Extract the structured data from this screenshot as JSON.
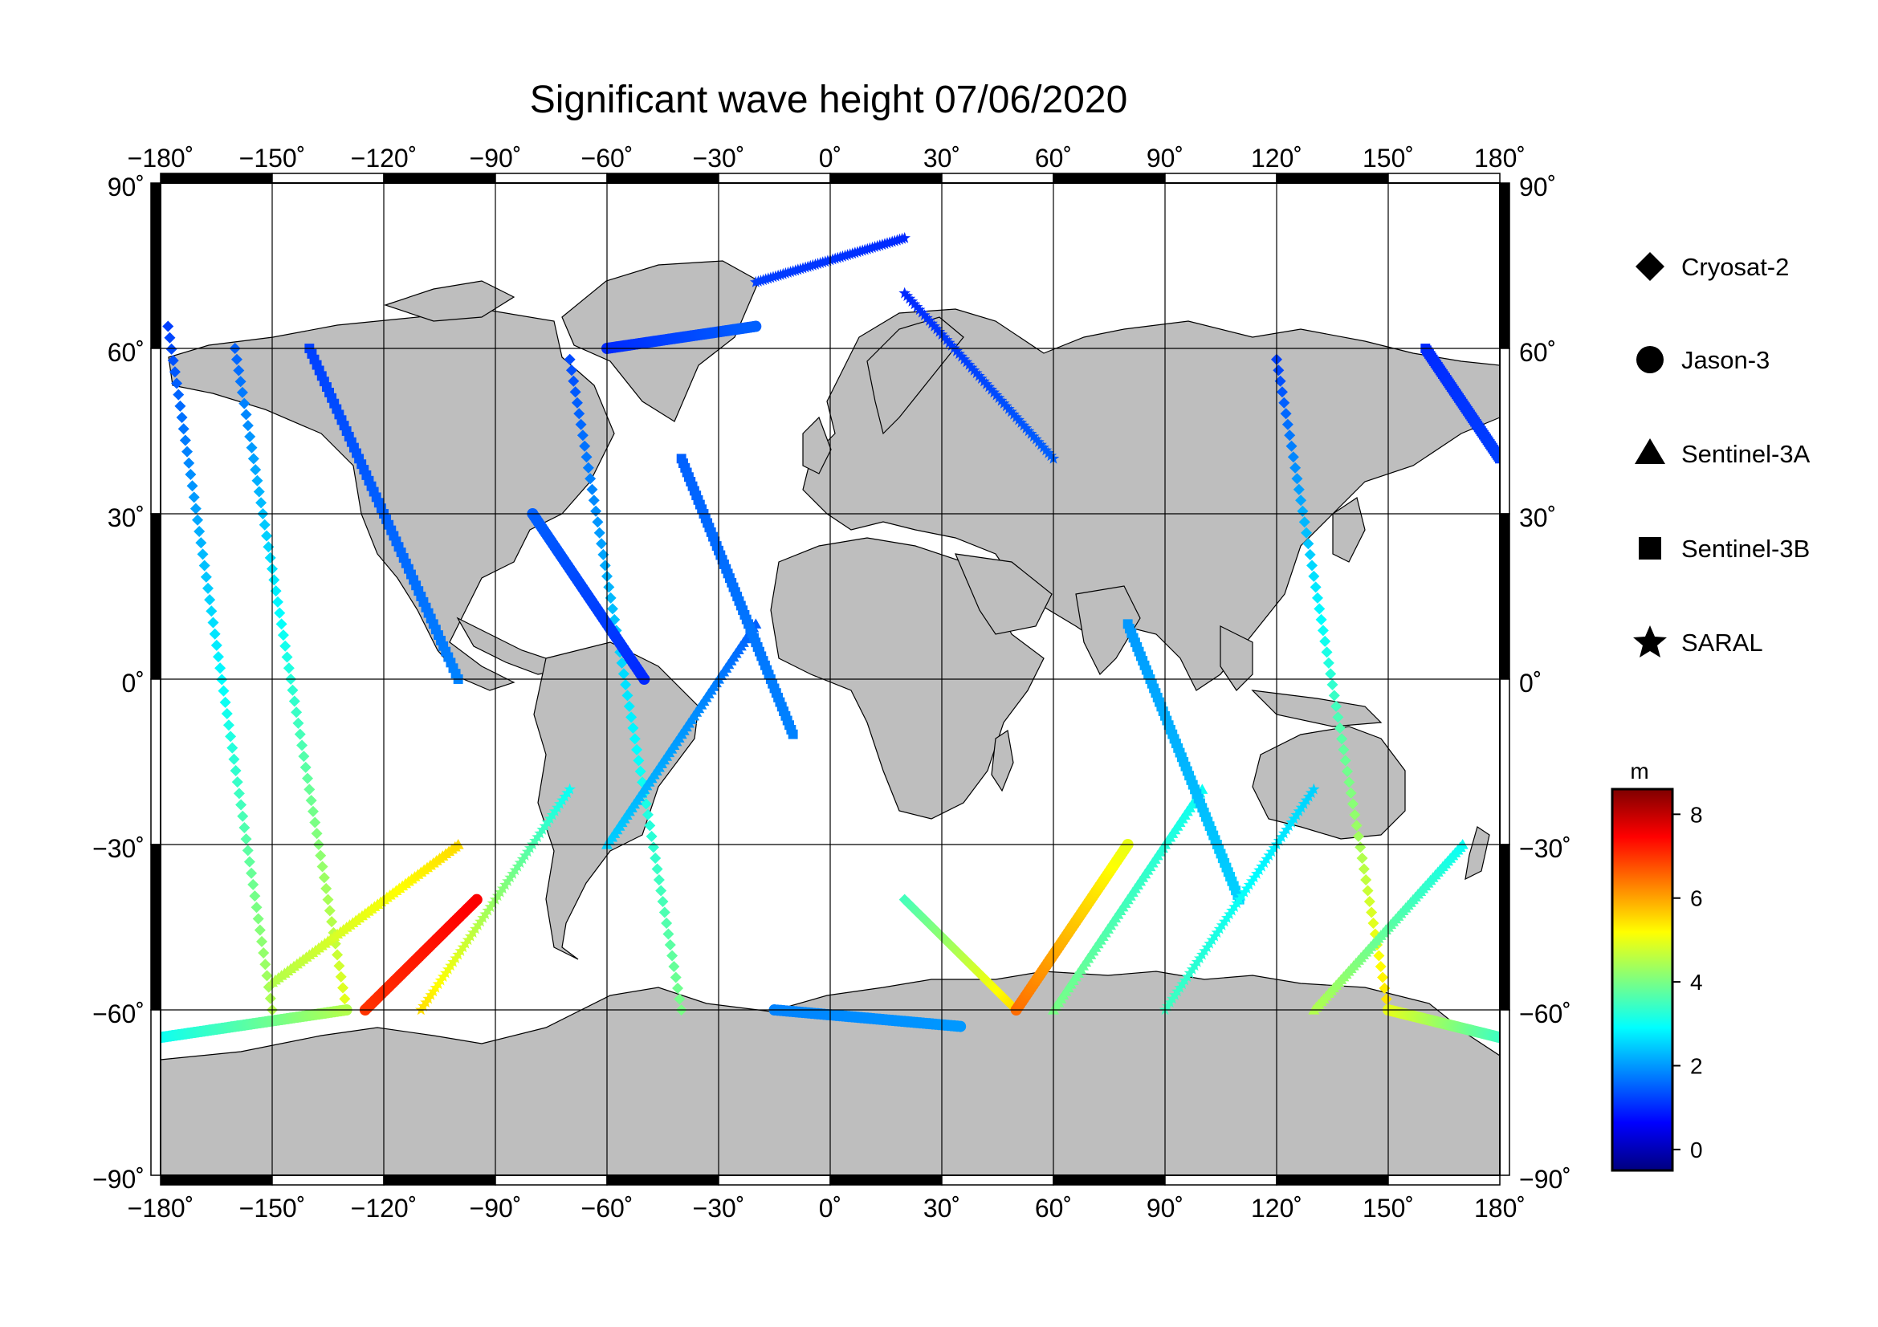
{
  "title": "Significant wave height 07/06/2020",
  "axes": {
    "lon_ticks": [
      "−180˚",
      "−150˚",
      "−120˚",
      "−90˚",
      "−60˚",
      "−30˚",
      "0˚",
      "30˚",
      "60˚",
      "90˚",
      "120˚",
      "150˚",
      "180˚"
    ],
    "lat_ticks": [
      "90˚",
      "60˚",
      "30˚",
      "0˚",
      "−30˚",
      "−60˚",
      "−90˚"
    ],
    "lon_range": [
      -180,
      180
    ],
    "lat_range": [
      -90,
      90
    ],
    "grid": true
  },
  "legend": {
    "position": "right",
    "items": [
      {
        "name": "Cryosat-2",
        "symbol": "diamond-icon"
      },
      {
        "name": "Jason-3",
        "symbol": "circle-icon"
      },
      {
        "name": "Sentinel-3A",
        "symbol": "triangle-icon"
      },
      {
        "name": "Sentinel-3B",
        "symbol": "square-icon"
      },
      {
        "name": "SARAL",
        "symbol": "star-icon"
      }
    ]
  },
  "colorbar": {
    "unit": "m",
    "ticks": [
      "8",
      "6",
      "4",
      "2",
      "0"
    ],
    "range": [
      -0.5,
      8.6
    ],
    "colors": [
      "#00007f",
      "#0000ff",
      "#007fff",
      "#00ffff",
      "#7fff7f",
      "#ffff00",
      "#ff7f00",
      "#ff0000",
      "#7f0000"
    ]
  },
  "colors": {
    "land": "#bebebe",
    "ocean": "#ffffff",
    "frame": "#000000"
  },
  "chart_data": {
    "type": "scatter",
    "xlabel": "",
    "ylabel": "",
    "xlim": [
      -180,
      180
    ],
    "ylim": [
      -90,
      90
    ],
    "value_unit": "m",
    "series": [
      {
        "name": "Cryosat-2",
        "marker": "diamond",
        "tracks": [
          {
            "lon": [
              -178,
              -150
            ],
            "lat": [
              64,
              -60
            ],
            "val": [
              1.2,
              4.5
            ]
          },
          {
            "lon": [
              -160,
              -130
            ],
            "lat": [
              60,
              -60
            ],
            "val": [
              1.5,
              5.0
            ]
          },
          {
            "lon": [
              -70,
              -40
            ],
            "lat": [
              58,
              -60
            ],
            "val": [
              1.3,
              4.0
            ]
          },
          {
            "lon": [
              20,
              50
            ],
            "lat": [
              -40,
              -60
            ],
            "val": [
              3.5,
              5.5
            ]
          },
          {
            "lon": [
              120,
              150
            ],
            "lat": [
              58,
              -60
            ],
            "val": [
              1.2,
              5.5
            ]
          }
        ]
      },
      {
        "name": "Jason-3",
        "marker": "circle",
        "tracks": [
          {
            "lon": [
              -180,
              -130
            ],
            "lat": [
              -65,
              -60
            ],
            "val": [
              3.0,
              4.5
            ]
          },
          {
            "lon": [
              -125,
              -95
            ],
            "lat": [
              -60,
              -40
            ],
            "val": [
              7.0,
              7.5
            ]
          },
          {
            "lon": [
              -60,
              -20
            ],
            "lat": [
              60,
              64
            ],
            "val": [
              1.0,
              1.5
            ]
          },
          {
            "lon": [
              -80,
              -50
            ],
            "lat": [
              30,
              0
            ],
            "val": [
              1.5,
              1.0
            ]
          },
          {
            "lon": [
              -15,
              35
            ],
            "lat": [
              -60,
              -63
            ],
            "val": [
              1.8,
              2.0
            ]
          },
          {
            "lon": [
              50,
              80
            ],
            "lat": [
              -60,
              -30
            ],
            "val": [
              6.5,
              5.0
            ]
          },
          {
            "lon": [
              150,
              180
            ],
            "lat": [
              -60,
              -65
            ],
            "val": [
              5.0,
              3.5
            ]
          }
        ]
      },
      {
        "name": "Sentinel-3A",
        "marker": "triangle",
        "tracks": [
          {
            "lon": [
              -150,
              -100
            ],
            "lat": [
              -55,
              -30
            ],
            "val": [
              4.5,
              5.5
            ]
          },
          {
            "lon": [
              -60,
              -20
            ],
            "lat": [
              -30,
              10
            ],
            "val": [
              2.5,
              1.5
            ]
          },
          {
            "lon": [
              60,
              100
            ],
            "lat": [
              -60,
              -20
            ],
            "val": [
              4.0,
              3.0
            ]
          },
          {
            "lon": [
              130,
              170
            ],
            "lat": [
              -60,
              -30
            ],
            "val": [
              4.5,
              3.0
            ]
          }
        ]
      },
      {
        "name": "Sentinel-3B",
        "marker": "square",
        "tracks": [
          {
            "lon": [
              -140,
              -100
            ],
            "lat": [
              60,
              0
            ],
            "val": [
              1.2,
              1.8
            ]
          },
          {
            "lon": [
              -40,
              -10
            ],
            "lat": [
              40,
              -10
            ],
            "val": [
              1.5,
              1.8
            ]
          },
          {
            "lon": [
              80,
              110
            ],
            "lat": [
              10,
              -40
            ],
            "val": [
              2.0,
              2.5
            ]
          },
          {
            "lon": [
              160,
              180
            ],
            "lat": [
              60,
              40
            ],
            "val": [
              1.0,
              1.2
            ]
          }
        ]
      },
      {
        "name": "SARAL",
        "marker": "star",
        "tracks": [
          {
            "lon": [
              -110,
              -70
            ],
            "lat": [
              -60,
              -20
            ],
            "val": [
              5.5,
              3.0
            ]
          },
          {
            "lon": [
              -20,
              20
            ],
            "lat": [
              72,
              80
            ],
            "val": [
              1.2,
              1.0
            ]
          },
          {
            "lon": [
              20,
              60
            ],
            "lat": [
              70,
              40
            ],
            "val": [
              1.0,
              1.5
            ]
          },
          {
            "lon": [
              90,
              130
            ],
            "lat": [
              -60,
              -20
            ],
            "val": [
              3.5,
              2.5
            ]
          }
        ]
      }
    ]
  }
}
